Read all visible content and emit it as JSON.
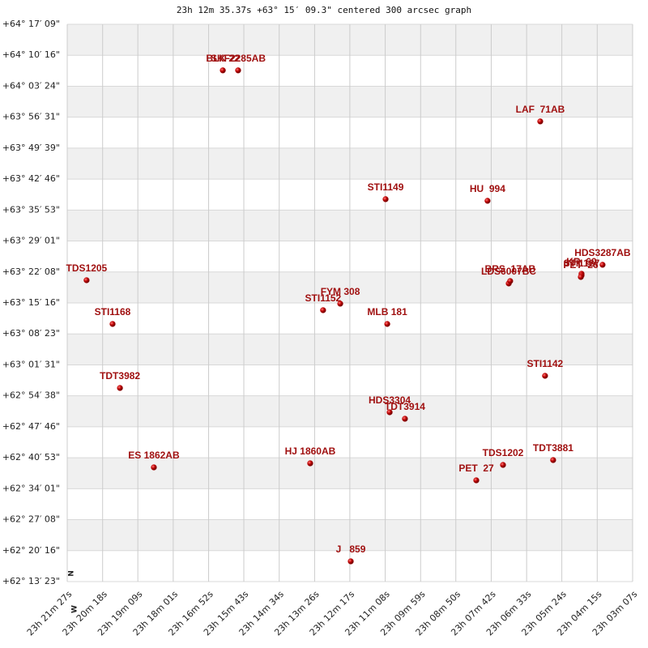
{
  "chart_data": {
    "type": "scatter",
    "title": "23h 12m 35.37s +63° 15′ 09.3\" centered 300 arcsec graph",
    "compass": [
      "N",
      "W"
    ],
    "color": "#c00000",
    "band_color": "#f0f0f0",
    "xlim": [
      23.3575,
      23.0508
    ],
    "ylim": [
      62.2231,
      64.2857
    ],
    "xticks": [
      {
        "value": 23.3575,
        "label": "23h 21m 27s"
      },
      {
        "value": 23.3383,
        "label": "23h 20m 18s"
      },
      {
        "value": 23.3192,
        "label": "23h 19m 09s"
      },
      {
        "value": 23.3,
        "label": "23h 18m 01s"
      },
      {
        "value": 23.2808,
        "label": "23h 16m 52s"
      },
      {
        "value": 23.2617,
        "label": "23h 15m 43s"
      },
      {
        "value": 23.2425,
        "label": "23h 14m 34s"
      },
      {
        "value": 23.2233,
        "label": "23h 13m 26s"
      },
      {
        "value": 23.2042,
        "label": "23h 12m 17s"
      },
      {
        "value": 23.185,
        "label": "23h 11m 08s"
      },
      {
        "value": 23.1658,
        "label": "23h 09m 59s"
      },
      {
        "value": 23.1467,
        "label": "23h 08m 50s"
      },
      {
        "value": 23.1275,
        "label": "23h 07m 42s"
      },
      {
        "value": 23.1083,
        "label": "23h 06m 33s"
      },
      {
        "value": 23.0892,
        "label": "23h 05m 24s"
      },
      {
        "value": 23.07,
        "label": "23h 04m 15s"
      },
      {
        "value": 23.0508,
        "label": "23h 03m 07s"
      }
    ],
    "yticks": [
      {
        "value": 62.2231,
        "label": "+62° 13′ 23\""
      },
      {
        "value": 62.3377,
        "label": "+62° 20′ 16\""
      },
      {
        "value": 62.4523,
        "label": "+62° 27′ 08\""
      },
      {
        "value": 62.5669,
        "label": "+62° 34′ 01\""
      },
      {
        "value": 62.6814,
        "label": "+62° 40′ 53\""
      },
      {
        "value": 62.796,
        "label": "+62° 47′ 46\""
      },
      {
        "value": 62.9106,
        "label": "+62° 54′ 38\""
      },
      {
        "value": 63.0252,
        "label": "+63° 01′ 31\""
      },
      {
        "value": 63.1398,
        "label": "+63° 08′ 23\""
      },
      {
        "value": 63.2544,
        "label": "+63° 15′ 16\""
      },
      {
        "value": 63.369,
        "label": "+63° 22′ 08\""
      },
      {
        "value": 63.4836,
        "label": "+63° 29′ 01\""
      },
      {
        "value": 63.5981,
        "label": "+63° 35′ 53\""
      },
      {
        "value": 63.7127,
        "label": "+63° 42′ 46\""
      },
      {
        "value": 63.8273,
        "label": "+63° 49′ 39\""
      },
      {
        "value": 63.9419,
        "label": "+63° 56′ 31\""
      },
      {
        "value": 64.0565,
        "label": "+64° 03′ 24\""
      },
      {
        "value": 64.1711,
        "label": "+64° 10′ 16\""
      },
      {
        "value": 64.2857,
        "label": "+64° 17′ 09\""
      }
    ],
    "points": [
      {
        "name": "BLK 22",
        "x": 23.2731,
        "y": 64.1152
      },
      {
        "name": "SKF2285AB",
        "x": 23.2648,
        "y": 64.1152
      },
      {
        "name": "LAF  71AB",
        "x": 23.1009,
        "y": 63.9262
      },
      {
        "name": "STI1149",
        "x": 23.1848,
        "y": 63.6384
      },
      {
        "name": "HU  994",
        "x": 23.1295,
        "y": 63.6324
      },
      {
        "name": "TDS1205",
        "x": 23.347,
        "y": 63.3385
      },
      {
        "name": "LDS6007BC",
        "x": 23.118,
        "y": 63.3265
      },
      {
        "name": "BRS  17AB",
        "x": 23.1172,
        "y": 63.3355
      },
      {
        "name": "KR  60",
        "x": 23.0785,
        "y": 63.3625
      },
      {
        "name": "STI1127",
        "x": 23.0785,
        "y": 63.3565
      },
      {
        "name": "PET  26",
        "x": 23.0789,
        "y": 63.3505
      },
      {
        "name": "HDS3287AB",
        "x": 23.0671,
        "y": 63.3955
      },
      {
        "name": "STI1152",
        "x": 23.2187,
        "y": 63.2276
      },
      {
        "name": "FYM 308",
        "x": 23.2094,
        "y": 63.2516
      },
      {
        "name": "STI1168",
        "x": 23.3329,
        "y": 63.1766
      },
      {
        "name": "MLB 181",
        "x": 23.1839,
        "y": 63.1766
      },
      {
        "name": "STI1142",
        "x": 23.0983,
        "y": 62.9847
      },
      {
        "name": "TDT3982",
        "x": 23.3289,
        "y": 62.9397
      },
      {
        "name": "HDS3304",
        "x": 23.1826,
        "y": 62.8498
      },
      {
        "name": "TDT3914",
        "x": 23.1743,
        "y": 62.8258
      },
      {
        "name": "ES 1862AB",
        "x": 23.3105,
        "y": 62.6459
      },
      {
        "name": "HJ 1860AB",
        "x": 23.2257,
        "y": 62.6609
      },
      {
        "name": "TDS1202",
        "x": 23.1211,
        "y": 62.6549
      },
      {
        "name": "TDT3881",
        "x": 23.0939,
        "y": 62.6729
      },
      {
        "name": "PET  27",
        "x": 23.1356,
        "y": 62.5979
      },
      {
        "name": "J   859",
        "x": 23.2037,
        "y": 62.2981
      }
    ]
  }
}
